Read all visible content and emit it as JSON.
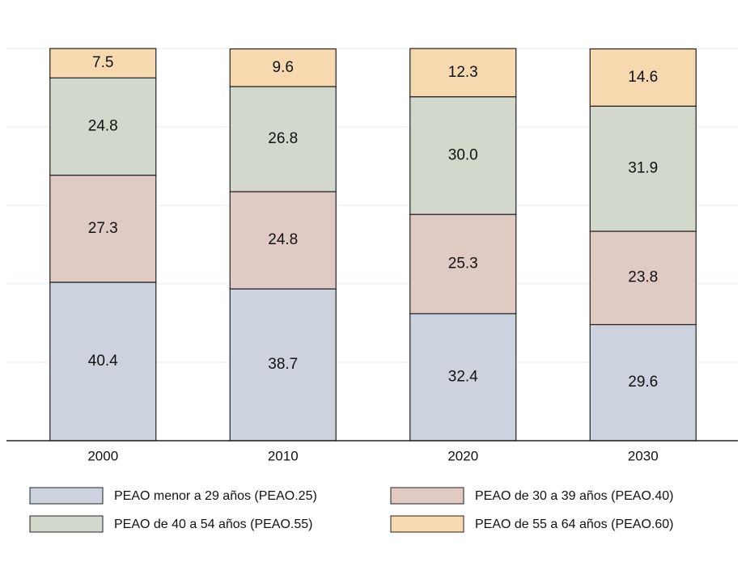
{
  "chart_data": {
    "type": "stacked_bar",
    "categories": [
      "2000",
      "2010",
      "2020",
      "2030"
    ],
    "series": [
      {
        "name": "PEAO menor a 29 años (PEAO.25)",
        "color": "#ccd3df",
        "values": [
          40.4,
          38.7,
          32.4,
          29.6
        ]
      },
      {
        "name": "PEAO de 30 a 39 años (PEAO.40)",
        "color": "#e0cac4",
        "values": [
          27.3,
          24.8,
          25.3,
          23.8
        ]
      },
      {
        "name": "PEAO de 40 a 54 años (PEAO.55)",
        "color": "#d2d8cc",
        "values": [
          24.8,
          26.8,
          30.0,
          31.9
        ],
        "value_labels": [
          "24.8",
          "26.8",
          "30.0",
          "31.9"
        ]
      },
      {
        "name": "PEAO de 55 a 64 años (PEAO.60)",
        "color": "#f7d9b0",
        "values": [
          7.5,
          9.6,
          12.3,
          14.6
        ]
      }
    ],
    "ylim": [
      0,
      100
    ],
    "yticks": [
      0,
      20,
      40,
      60,
      80,
      100
    ],
    "grid": true
  }
}
